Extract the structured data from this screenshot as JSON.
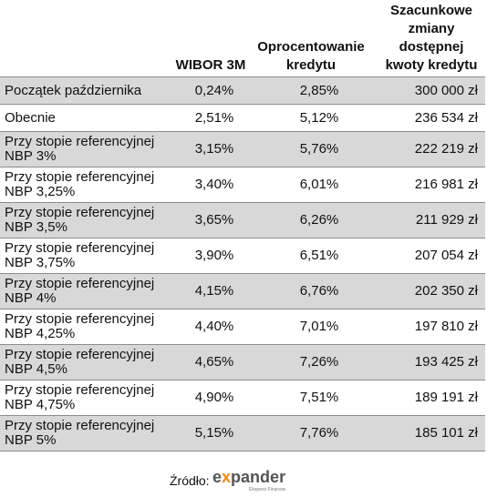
{
  "chart_data": {
    "type": "table",
    "columns": [
      "",
      "WIBOR 3M",
      "Oprocentowanie\nkredytu",
      "Szacunkowe\nzmiany\ndostępnej\nkwoty kredytu"
    ],
    "rows": [
      {
        "label": "Początek października",
        "wibor": "0,24%",
        "oprocentowanie": "2,85%",
        "kwota": "300 000 zł"
      },
      {
        "label": "Obecnie",
        "wibor": "2,51%",
        "oprocentowanie": "5,12%",
        "kwota": "236 534 zł"
      },
      {
        "label": "Przy stopie referencyjnej NBP 3%",
        "wibor": "3,15%",
        "oprocentowanie": "5,76%",
        "kwota": "222 219 zł"
      },
      {
        "label": "Przy stopie referencyjnej NBP 3,25%",
        "wibor": "3,40%",
        "oprocentowanie": "6,01%",
        "kwota": "216 981 zł"
      },
      {
        "label": "Przy stopie referencyjnej NBP 3,5%",
        "wibor": "3,65%",
        "oprocentowanie": "6,26%",
        "kwota": "211 929 zł"
      },
      {
        "label": "Przy stopie referencyjnej NBP 3,75%",
        "wibor": "3,90%",
        "oprocentowanie": "6,51%",
        "kwota": "207 054 zł"
      },
      {
        "label": "Przy stopie referencyjnej NBP 4%",
        "wibor": "4,15%",
        "oprocentowanie": "6,76%",
        "kwota": "202 350 zł"
      },
      {
        "label": "Przy stopie referencyjnej NBP 4,25%",
        "wibor": "4,40%",
        "oprocentowanie": "7,01%",
        "kwota": "197 810 zł"
      },
      {
        "label": "Przy stopie referencyjnej NBP 4,5%",
        "wibor": "4,65%",
        "oprocentowanie": "7,26%",
        "kwota": "193 425 zł"
      },
      {
        "label": "Przy stopie referencyjnej NBP 4,75%",
        "wibor": "4,90%",
        "oprocentowanie": "7,51%",
        "kwota": "189 191 zł"
      },
      {
        "label": "Przy stopie referencyjnej NBP 5%",
        "wibor": "5,15%",
        "oprocentowanie": "7,76%",
        "kwota": "185 101 zł"
      }
    ]
  },
  "source": {
    "label": "Źródło:",
    "brand": "expander",
    "brand_tagline": "Eksperci Finansowi"
  },
  "colors": {
    "row_shade": "#d8d8d8",
    "brand_orange": "#f08a12",
    "brand_grey": "#555555"
  }
}
